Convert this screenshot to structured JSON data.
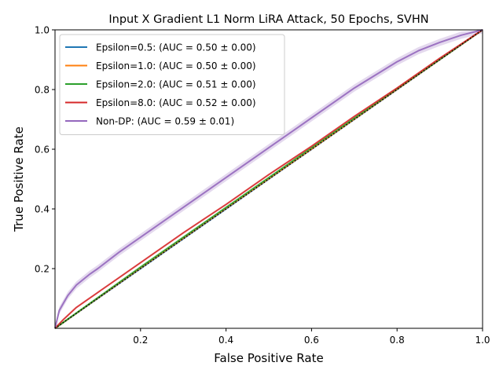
{
  "chart_data": {
    "type": "line",
    "title": "Input X Gradient L1 Norm LiRA Attack, 50 Epochs, SVHN",
    "xlabel": "False Positive Rate",
    "ylabel": "True Positive Rate",
    "xlim": [
      0,
      1
    ],
    "ylim": [
      0,
      1
    ],
    "x_ticks": [
      "0.2",
      "0.4",
      "0.6",
      "0.8",
      "1.0"
    ],
    "y_ticks": [
      "0.2",
      "0.4",
      "0.6",
      "0.8",
      "1.0"
    ],
    "grid": false,
    "legend_position": "upper-left",
    "reference_line": {
      "style": "dotted",
      "color": "#000000",
      "points": [
        [
          0,
          0
        ],
        [
          1,
          1
        ]
      ]
    },
    "series": [
      {
        "name": "Epsilon=0.5: (AUC = 0.50 ± 0.00)",
        "color": "#1f77b4",
        "x": [
          0,
          0.2,
          0.4,
          0.6,
          0.8,
          1.0
        ],
        "y": [
          0,
          0.2,
          0.4,
          0.6,
          0.8,
          1.0
        ]
      },
      {
        "name": "Epsilon=1.0: (AUC = 0.50 ± 0.00)",
        "color": "#ff7f0e",
        "x": [
          0,
          0.2,
          0.4,
          0.6,
          0.8,
          1.0
        ],
        "y": [
          0,
          0.202,
          0.402,
          0.601,
          0.801,
          1.0
        ]
      },
      {
        "name": "Epsilon=2.0: (AUC = 0.51 ± 0.00)",
        "color": "#2ca02c",
        "x": [
          0,
          0.2,
          0.4,
          0.6,
          0.8,
          1.0
        ],
        "y": [
          0,
          0.205,
          0.405,
          0.605,
          0.803,
          1.0
        ]
      },
      {
        "name": "Epsilon=8.0: (AUC = 0.52 ± 0.00)",
        "color": "#d62728",
        "x": [
          0,
          0.02,
          0.05,
          0.1,
          0.15,
          0.2,
          0.3,
          0.4,
          0.5,
          0.6,
          0.7,
          0.8,
          0.9,
          1.0
        ],
        "y": [
          0,
          0.03,
          0.07,
          0.12,
          0.17,
          0.22,
          0.32,
          0.415,
          0.515,
          0.61,
          0.71,
          0.805,
          0.905,
          1.0
        ]
      },
      {
        "name": "Non-DP: (AUC = 0.59 ± 0.01)",
        "color": "#9467bd",
        "band": 0.012,
        "x": [
          0,
          0.01,
          0.03,
          0.05,
          0.08,
          0.1,
          0.15,
          0.2,
          0.3,
          0.4,
          0.5,
          0.6,
          0.7,
          0.8,
          0.85,
          0.9,
          0.95,
          1.0
        ],
        "y": [
          0,
          0.06,
          0.11,
          0.145,
          0.18,
          0.2,
          0.255,
          0.305,
          0.405,
          0.505,
          0.605,
          0.705,
          0.805,
          0.893,
          0.93,
          0.958,
          0.982,
          1.0
        ]
      }
    ]
  }
}
